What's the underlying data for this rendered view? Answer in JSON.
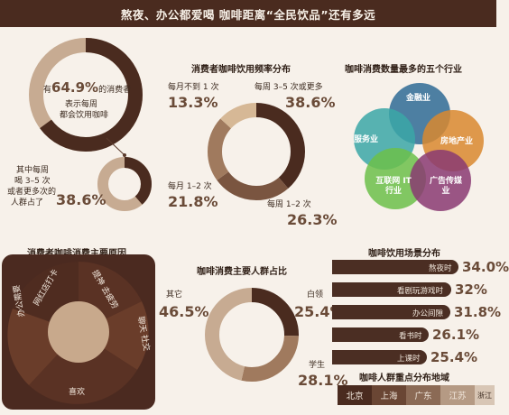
{
  "banner": {
    "title": "熬夜、办公都爱喝  咖啡距离“全民饮品”还有多远"
  },
  "weekly": {
    "pct_64": "64.9%",
    "text_64_pre": "有",
    "text_64_post": "的消费者",
    "text_64_line2": "表示每周",
    "text_64_line3": "都会饮用咖啡",
    "sub_line1": "其中每周",
    "sub_line2": "喝 3–5 次",
    "sub_line3": "或者更多次的",
    "sub_line4": "人群占了",
    "pct_38": "38.6%"
  },
  "frequency": {
    "title": "消费者咖啡饮用频率分布",
    "items": [
      {
        "label": "每月不到 1 次",
        "value": "13.3%"
      },
      {
        "label": "每周 3–5 次或更多",
        "value": "38.6%"
      },
      {
        "label": "每月 1–2 次",
        "value": "21.8%"
      },
      {
        "label": "每周 1–2 次",
        "value": "26.3%"
      }
    ]
  },
  "industries": {
    "title": "咖啡消费数量最多的五个行业",
    "items": [
      "金融业",
      "房地产业",
      "广告传媒业",
      "互联网 IT 行业",
      "服务业"
    ],
    "colors": [
      "#2f6b95",
      "#d9882f",
      "#8a3a72",
      "#6cc04a",
      "#3ba7a7"
    ]
  },
  "reasons": {
    "title": "消费者咖啡消费主要原因",
    "items": [
      "提神 去疲劳",
      "聊天 社交",
      "喜欢",
      "办公需要",
      "网红店打卡"
    ]
  },
  "people": {
    "title": "咖啡消费主要人群占比",
    "white_collar": {
      "label": "白领",
      "value": "25.4%"
    },
    "student": {
      "label": "学生",
      "value": "28.1%"
    },
    "other": {
      "label": "其它",
      "value": "46.5%"
    }
  },
  "scenes": {
    "title": "咖啡饮用场景分布",
    "items": [
      {
        "label": "熬夜时",
        "value": "34.0%",
        "pct": 34.0
      },
      {
        "label": "看剧玩游戏时",
        "value": "32%",
        "pct": 32.0
      },
      {
        "label": "办公间隙",
        "value": "31.8%",
        "pct": 31.8
      },
      {
        "label": "看书时",
        "value": "26.1%",
        "pct": 26.1
      },
      {
        "label": "上课时",
        "value": "25.4%",
        "pct": 25.4
      }
    ]
  },
  "regions": {
    "title": "咖啡人群重点分布地域",
    "cities": [
      "北京",
      "上海",
      "广东",
      "江苏",
      "浙江"
    ]
  },
  "palette": {
    "dark": "#4a2b1f",
    "mid": "#7a5540",
    "light": "#c7ab92",
    "cream": "#f7f1ea"
  }
}
